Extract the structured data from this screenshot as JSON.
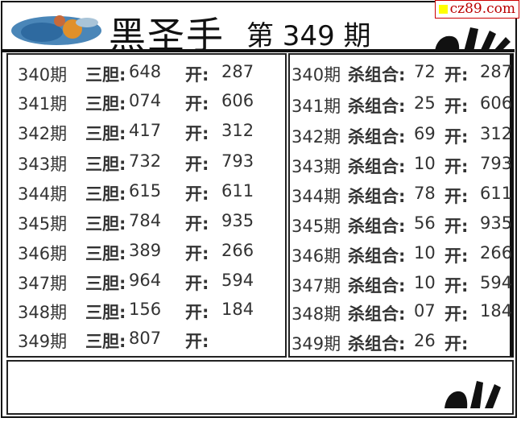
{
  "header": {
    "title": "黑圣手",
    "issue": "第 349 期"
  },
  "watermark": "cz89.com",
  "left": {
    "label": "三胆",
    "open_label": "开",
    "rows": [
      {
        "period": "340期",
        "value": "648",
        "open": "287"
      },
      {
        "period": "341期",
        "value": "074",
        "open": "606"
      },
      {
        "period": "342期",
        "value": "417",
        "open": "312"
      },
      {
        "period": "343期",
        "value": "732",
        "open": "793"
      },
      {
        "period": "344期",
        "value": "615",
        "open": "611"
      },
      {
        "period": "345期",
        "value": "784",
        "open": "935"
      },
      {
        "period": "346期",
        "value": "389",
        "open": "266"
      },
      {
        "period": "347期",
        "value": "964",
        "open": "594"
      },
      {
        "period": "348期",
        "value": "156",
        "open": "184"
      },
      {
        "period": "349期",
        "value": "807",
        "open": ""
      }
    ]
  },
  "right": {
    "label": "杀组合",
    "open_label": "开",
    "rows": [
      {
        "period": "340期",
        "value": "72",
        "open": "287"
      },
      {
        "period": "341期",
        "value": "25",
        "open": "606"
      },
      {
        "period": "342期",
        "value": "69",
        "open": "312"
      },
      {
        "period": "343期",
        "value": "10",
        "open": "793"
      },
      {
        "period": "344期",
        "value": "78",
        "open": "611"
      },
      {
        "period": "345期",
        "value": "56",
        "open": "935"
      },
      {
        "period": "346期",
        "value": "10",
        "open": "266"
      },
      {
        "period": "347期",
        "value": "10",
        "open": "594"
      },
      {
        "period": "348期",
        "value": "07",
        "open": "184"
      },
      {
        "period": "349期",
        "value": "26",
        "open": ""
      }
    ]
  }
}
